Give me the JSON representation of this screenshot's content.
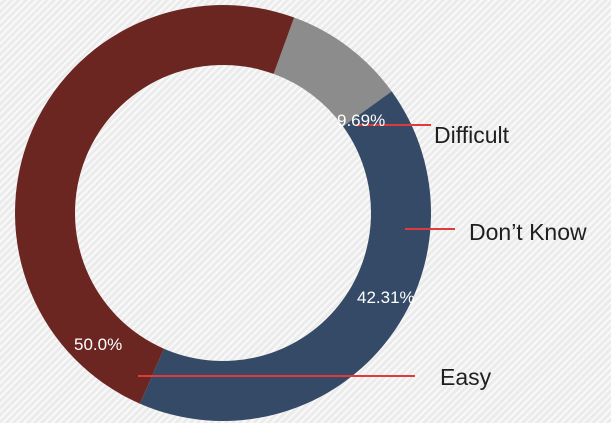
{
  "chart_data": {
    "type": "pie",
    "categories": [
      "Easy",
      "Difficult",
      "Don’t Know"
    ],
    "values": [
      50.0,
      9.69,
      42.31
    ],
    "value_labels": [
      "50.0%",
      "9.69%",
      "42.31%"
    ],
    "colors": [
      "#6b2622",
      "#8c8c8c",
      "#344a66"
    ],
    "leader_color": "#e03a3a",
    "title": "",
    "style": "donut"
  }
}
